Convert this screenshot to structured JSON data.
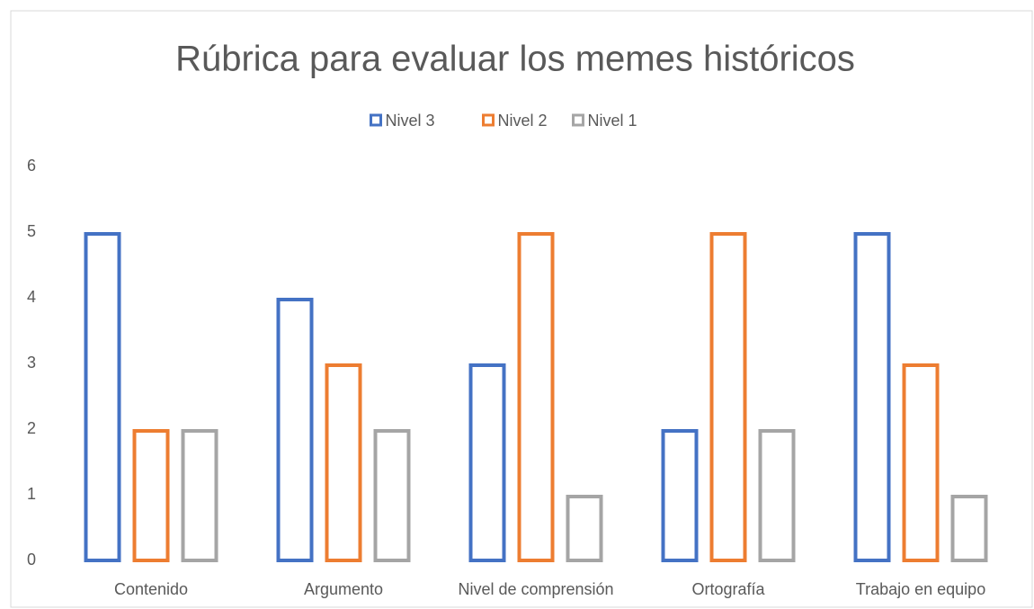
{
  "chart_data": {
    "type": "bar",
    "title": "Rúbrica para evaluar los memes históricos",
    "categories": [
      "Contenido",
      "Argumento",
      "Nivel de comprensión",
      "Ortografía",
      "Trabajo en equipo"
    ],
    "series": [
      {
        "name": "Nivel 3",
        "color": "#4472c4",
        "values": [
          5,
          4,
          3,
          2,
          5
        ]
      },
      {
        "name": "Nivel 2",
        "color": "#ed7d31",
        "values": [
          2,
          3,
          5,
          5,
          3
        ]
      },
      {
        "name": "Nivel 1",
        "color": "#a5a5a5",
        "values": [
          2,
          2,
          1,
          2,
          1
        ]
      }
    ],
    "ylim": [
      0,
      6
    ],
    "yticks": [
      0,
      1,
      2,
      3,
      4,
      5,
      6
    ],
    "grid": false,
    "legend": "top"
  }
}
